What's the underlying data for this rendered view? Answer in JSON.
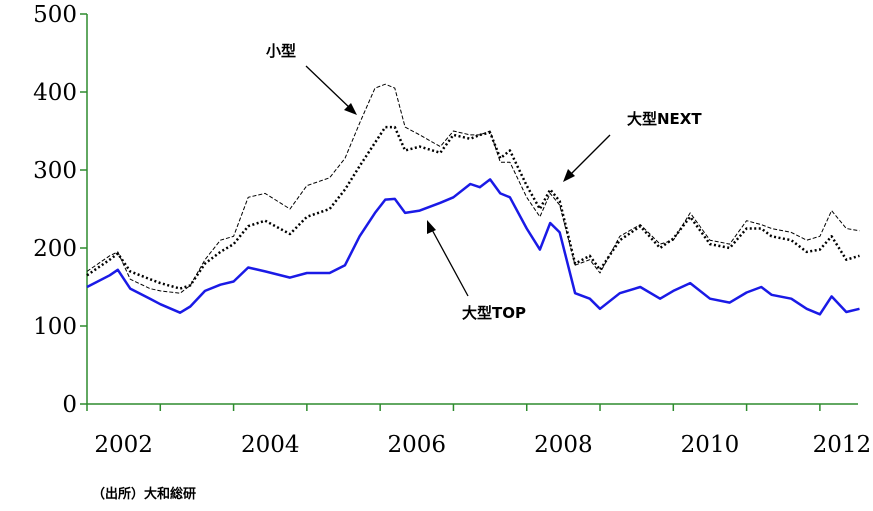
{
  "chart_data": {
    "type": "line",
    "source": "（出所）大和総研",
    "x": [
      2002.0,
      2002.31,
      2002.42,
      2002.59,
      2002.86,
      2003.0,
      2003.27,
      2003.41,
      2003.61,
      2003.82,
      2004.0,
      2004.2,
      2004.43,
      2004.77,
      2005.0,
      2005.31,
      2005.52,
      2005.72,
      2005.93,
      2006.07,
      2006.2,
      2006.34,
      2006.54,
      2006.82,
      2007.0,
      2007.23,
      2007.36,
      2007.5,
      2007.64,
      2007.77,
      2008.0,
      2008.18,
      2008.32,
      2008.45,
      2008.66,
      2008.86,
      2009.0,
      2009.27,
      2009.55,
      2009.82,
      2010.0,
      2010.23,
      2010.5,
      2010.77,
      2011.0,
      2011.2,
      2011.34,
      2011.61,
      2011.82,
      2012.0,
      2012.16,
      2012.36,
      2012.54
    ],
    "series": [
      {
        "name": "大型TOP",
        "color": "#1a1ae6",
        "dash": "none",
        "width": 2.5,
        "values": [
          150,
          165,
          172,
          148,
          135,
          128,
          117,
          125,
          145,
          153,
          157,
          175,
          170,
          162,
          168,
          168,
          178,
          215,
          245,
          262,
          263,
          245,
          248,
          258,
          265,
          282,
          278,
          288,
          270,
          265,
          225,
          198,
          232,
          220,
          142,
          135,
          122,
          142,
          150,
          135,
          145,
          155,
          135,
          130,
          143,
          150,
          140,
          135,
          122,
          115,
          138,
          118,
          122
        ]
      },
      {
        "name": "大型NEXT",
        "color": "#000000",
        "dash": "2 2.5",
        "width": 2.5,
        "values": [
          165,
          185,
          193,
          170,
          160,
          155,
          148,
          152,
          180,
          195,
          205,
          228,
          235,
          218,
          240,
          250,
          275,
          305,
          335,
          355,
          355,
          325,
          330,
          322,
          345,
          340,
          345,
          348,
          315,
          325,
          280,
          250,
          275,
          260,
          180,
          190,
          172,
          210,
          228,
          200,
          212,
          240,
          205,
          200,
          225,
          225,
          215,
          210,
          195,
          198,
          215,
          185,
          190
        ]
      },
      {
        "name": "小型",
        "color": "#000000",
        "dash": "4 2",
        "width": 1,
        "values": [
          170,
          190,
          195,
          160,
          148,
          145,
          142,
          152,
          185,
          210,
          215,
          265,
          270,
          250,
          280,
          290,
          315,
          360,
          405,
          410,
          405,
          355,
          345,
          330,
          350,
          345,
          345,
          350,
          310,
          310,
          265,
          240,
          270,
          255,
          178,
          185,
          168,
          215,
          230,
          205,
          210,
          245,
          210,
          205,
          235,
          230,
          225,
          220,
          210,
          215,
          248,
          225,
          222
        ]
      }
    ],
    "xlim": [
      2002,
      2012.52
    ],
    "xticks": [
      {
        "value": 2002.5,
        "label": "2002"
      },
      {
        "value": 2004.5,
        "label": "2004"
      },
      {
        "value": 2006.5,
        "label": "2006"
      },
      {
        "value": 2008.5,
        "label": "2008"
      },
      {
        "value": 2010.5,
        "label": "2010"
      },
      {
        "value": 2012.3,
        "label": "2012"
      }
    ],
    "xminor_ticks": [
      2002,
      2003,
      2004,
      2005,
      2006,
      2007,
      2008,
      2009,
      2010,
      2011,
      2012
    ],
    "ylim": [
      0,
      500
    ],
    "yticks": [
      0,
      100,
      200,
      300,
      400,
      500
    ],
    "axis_color": "#2e8b2e"
  }
}
